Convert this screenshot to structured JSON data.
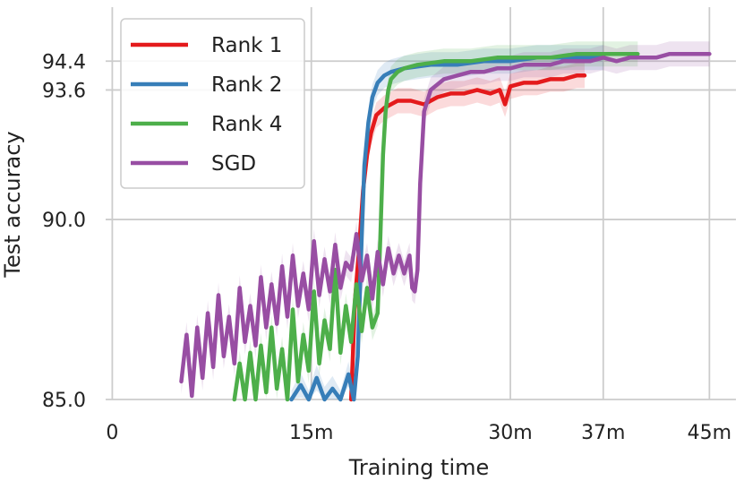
{
  "chart_data": {
    "type": "line",
    "title": "",
    "xlabel": "Training time",
    "ylabel": "Test accuracy",
    "x_unit": "minutes",
    "xlim": [
      -0.5,
      47
    ],
    "ylim": [
      85.0,
      95.9
    ],
    "x_ticks": [
      {
        "value": 0,
        "label": "0"
      },
      {
        "value": 15,
        "label": "15m"
      },
      {
        "value": 30,
        "label": "30m"
      },
      {
        "value": 37,
        "label": "37m"
      },
      {
        "value": 45,
        "label": "45m"
      }
    ],
    "y_ticks": [
      {
        "value": 85.0,
        "label": "85.0"
      },
      {
        "value": 90.0,
        "label": "90.0"
      },
      {
        "value": 93.6,
        "label": "93.6"
      },
      {
        "value": 94.4,
        "label": "94.4"
      }
    ],
    "grid": true,
    "legend_position": "top-left",
    "series": [
      {
        "name": "Rank 1",
        "color": "#e41a1c",
        "x": [
          18.0,
          18.3,
          18.6,
          18.9,
          19.2,
          19.5,
          19.9,
          20.5,
          21.5,
          22.5,
          23.5,
          24.5,
          25.5,
          26.5,
          27.5,
          28.5,
          29.2,
          29.6,
          30.0,
          31.0,
          32.0,
          33.0,
          34.0,
          35.0,
          35.6
        ],
        "y": [
          84.8,
          87.8,
          89.2,
          90.8,
          91.8,
          92.4,
          92.9,
          93.1,
          93.3,
          93.3,
          93.2,
          93.4,
          93.5,
          93.5,
          93.6,
          93.5,
          93.6,
          93.2,
          93.7,
          93.8,
          93.8,
          93.9,
          93.9,
          94.0,
          94.0
        ]
      },
      {
        "name": "Rank 2",
        "color": "#377eb8",
        "x": [
          13.5,
          14.2,
          14.8,
          15.4,
          16.0,
          16.6,
          17.2,
          17.8,
          18.2,
          18.5,
          18.8,
          19.0,
          19.3,
          19.6,
          20.0,
          20.5,
          21.0,
          22.0,
          24.0,
          26.0,
          28.0,
          30.0,
          32.0,
          34.0,
          36.0,
          37.0
        ],
        "y": [
          84.9,
          85.4,
          84.9,
          85.6,
          85.0,
          85.3,
          84.9,
          85.7,
          84.9,
          86.2,
          89.5,
          91.5,
          92.7,
          93.4,
          93.8,
          94.0,
          94.1,
          94.2,
          94.3,
          94.3,
          94.4,
          94.4,
          94.5,
          94.5,
          94.5,
          94.5
        ]
      },
      {
        "name": "Rank 4",
        "color": "#4daf4a",
        "x": [
          9.2,
          9.6,
          10.0,
          10.4,
          10.8,
          11.2,
          11.6,
          12.0,
          12.4,
          12.8,
          13.2,
          13.6,
          14.0,
          14.4,
          14.8,
          15.2,
          15.6,
          16.0,
          16.4,
          16.8,
          17.2,
          17.6,
          18.0,
          18.4,
          18.8,
          19.2,
          19.6,
          20.0,
          20.2,
          20.4,
          20.6,
          20.8,
          21.0,
          21.5,
          22.0,
          23.0,
          25.0,
          27.0,
          29.0,
          31.0,
          33.0,
          35.0,
          37.0,
          39.0,
          39.6
        ],
        "y": [
          84.9,
          86.0,
          85.0,
          86.3,
          84.9,
          86.5,
          85.2,
          87.0,
          85.3,
          86.4,
          84.9,
          87.5,
          85.5,
          86.8,
          85.8,
          88.0,
          86.0,
          87.2,
          86.4,
          88.6,
          86.3,
          87.6,
          86.6,
          88.2,
          86.9,
          88.1,
          87.0,
          87.4,
          89.5,
          91.8,
          93.0,
          93.6,
          93.9,
          94.1,
          94.2,
          94.3,
          94.4,
          94.4,
          94.5,
          94.5,
          94.5,
          94.6,
          94.6,
          94.6,
          94.6
        ]
      },
      {
        "name": "SGD",
        "color": "#984ea3",
        "x": [
          5.2,
          5.6,
          6.0,
          6.4,
          6.8,
          7.2,
          7.6,
          8.0,
          8.4,
          8.8,
          9.2,
          9.6,
          10.0,
          10.4,
          10.8,
          11.2,
          11.6,
          12.0,
          12.4,
          12.8,
          13.2,
          13.6,
          14.0,
          14.4,
          14.8,
          15.2,
          15.6,
          16.0,
          16.4,
          16.8,
          17.2,
          17.6,
          18.0,
          18.4,
          18.8,
          19.2,
          19.6,
          20.0,
          20.4,
          20.8,
          21.2,
          21.6,
          22.0,
          22.4,
          22.6,
          22.8,
          23.0,
          23.2,
          23.5,
          24.0,
          25.0,
          26.0,
          27.0,
          28.0,
          29.0,
          30.0,
          31.0,
          32.0,
          33.0,
          34.0,
          35.0,
          36.0,
          37.0,
          38.0,
          39.0,
          40.0,
          41.0,
          42.0,
          43.0,
          44.0,
          45.0
        ],
        "y": [
          85.5,
          86.8,
          85.1,
          87.0,
          85.6,
          87.4,
          85.9,
          87.9,
          86.2,
          87.3,
          86.0,
          88.1,
          86.6,
          87.6,
          86.5,
          88.4,
          87.0,
          88.2,
          87.1,
          88.7,
          87.3,
          89.0,
          87.6,
          88.5,
          87.5,
          89.4,
          87.9,
          88.9,
          88.0,
          89.3,
          88.1,
          88.8,
          88.6,
          89.6,
          88.3,
          89.0,
          87.8,
          89.1,
          88.2,
          89.2,
          88.5,
          89.0,
          88.5,
          89.0,
          88.1,
          88.0,
          88.6,
          91.0,
          93.0,
          93.6,
          93.9,
          94.0,
          94.1,
          94.1,
          94.2,
          94.2,
          94.3,
          94.3,
          94.3,
          94.4,
          94.4,
          94.4,
          94.5,
          94.4,
          94.5,
          94.5,
          94.5,
          94.6,
          94.6,
          94.6,
          94.6
        ]
      }
    ]
  }
}
